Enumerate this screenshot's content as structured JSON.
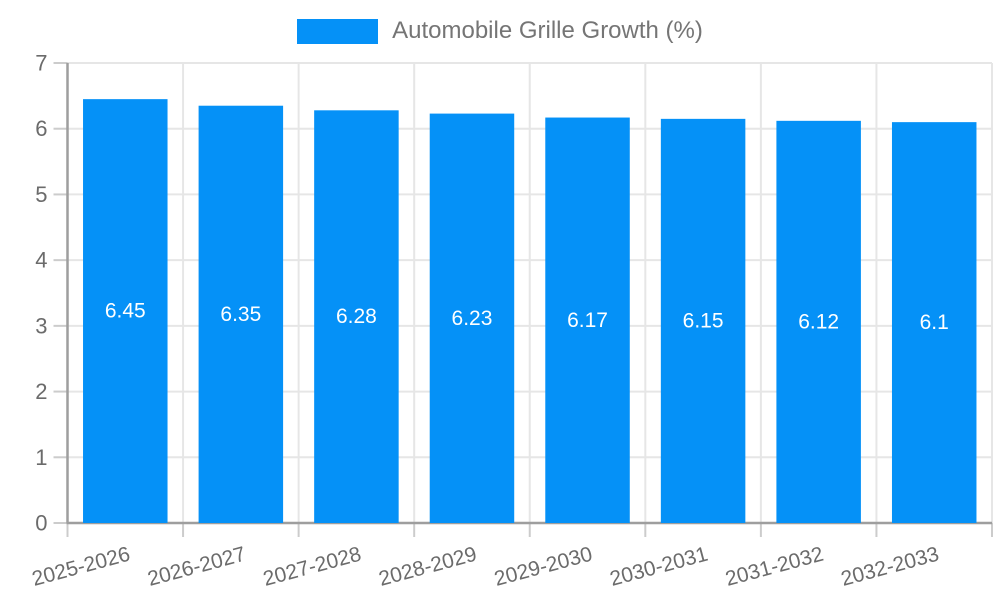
{
  "chart_data": {
    "type": "bar",
    "series_name": "Automobile Grille Growth (%)",
    "categories": [
      "2025-2026",
      "2026-2027",
      "2027-2028",
      "2028-2029",
      "2029-2030",
      "2030-2031",
      "2031-2032",
      "2032-2033"
    ],
    "values": [
      6.45,
      6.35,
      6.28,
      6.23,
      6.17,
      6.15,
      6.12,
      6.1
    ],
    "value_labels": [
      "6.45",
      "6.35",
      "6.28",
      "6.23",
      "6.17",
      "6.15",
      "6.12",
      "6.1"
    ],
    "xlabel": "",
    "ylabel": "",
    "ylim": [
      0,
      7
    ],
    "y_ticks": [
      0,
      1,
      2,
      3,
      4,
      5,
      6,
      7
    ],
    "grid": true,
    "legend_position": "top",
    "colors": {
      "bar": "#0591f7",
      "axis": "#9e9e9e",
      "grid": "#e6e6e6",
      "tick": "#cccccc",
      "axis_label": "#6b6b6b",
      "legend_text": "#757575",
      "value_label": "#ffffff",
      "background": "#ffffff"
    }
  }
}
